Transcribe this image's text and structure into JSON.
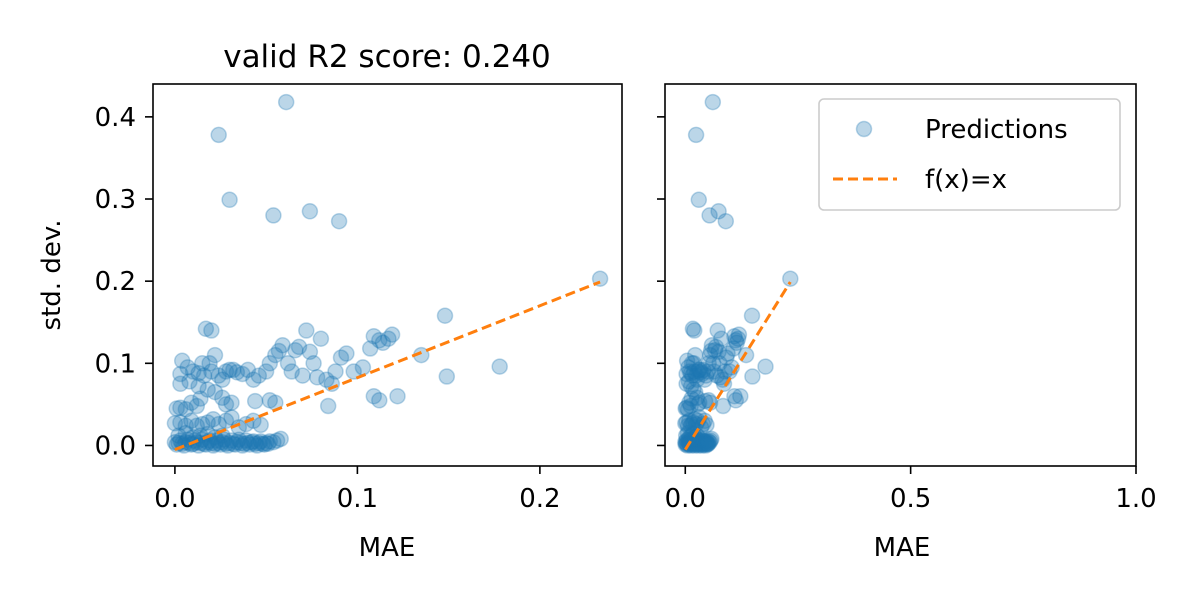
{
  "chart_data": [
    {
      "type": "scatter",
      "title": "valid R2 score: 0.240",
      "xlabel": "MAE",
      "ylabel": "std. dev.",
      "xlim": [
        -0.012,
        0.245
      ],
      "ylim": [
        -0.025,
        0.44
      ],
      "xticks": [
        0.0,
        0.1,
        0.2
      ],
      "xtick_labels": [
        "0.0",
        "0.1",
        "0.2"
      ],
      "yticks": [
        0.0,
        0.1,
        0.2,
        0.3,
        0.4
      ],
      "ytick_labels": [
        "0.0",
        "0.1",
        "0.2",
        "0.3",
        "0.4"
      ],
      "grid": false,
      "series": [
        {
          "kind": "scatter",
          "color": "#1f77b4",
          "opacity": 0.3,
          "points": [
            [
              0.061,
              0.418
            ],
            [
              0.024,
              0.378
            ],
            [
              0.03,
              0.299
            ],
            [
              0.054,
              0.28
            ],
            [
              0.074,
              0.285
            ],
            [
              0.09,
              0.273
            ],
            [
              0.233,
              0.203
            ],
            [
              0.148,
              0.158
            ],
            [
              0.178,
              0.096
            ],
            [
              0.149,
              0.084
            ],
            [
              0.122,
              0.06
            ],
            [
              0.112,
              0.055
            ],
            [
              0.109,
              0.06
            ],
            [
              0.084,
              0.048
            ],
            [
              0.017,
              0.142
            ],
            [
              0.02,
              0.14
            ],
            [
              0.022,
              0.11
            ],
            [
              0.019,
              0.1
            ],
            [
              0.015,
              0.1
            ],
            [
              0.004,
              0.103
            ],
            [
              0.007,
              0.095
            ],
            [
              0.003,
              0.087
            ],
            [
              0.01,
              0.09
            ],
            [
              0.013,
              0.088
            ],
            [
              0.016,
              0.085
            ],
            [
              0.02,
              0.09
            ],
            [
              0.024,
              0.085
            ],
            [
              0.026,
              0.08
            ],
            [
              0.028,
              0.09
            ],
            [
              0.03,
              0.092
            ],
            [
              0.032,
              0.092
            ],
            [
              0.034,
              0.089
            ],
            [
              0.037,
              0.087
            ],
            [
              0.04,
              0.092
            ],
            [
              0.043,
              0.08
            ],
            [
              0.046,
              0.085
            ],
            [
              0.05,
              0.09
            ],
            [
              0.052,
              0.1
            ],
            [
              0.055,
              0.11
            ],
            [
              0.057,
              0.115
            ],
            [
              0.059,
              0.122
            ],
            [
              0.062,
              0.1
            ],
            [
              0.064,
              0.09
            ],
            [
              0.066,
              0.116
            ],
            [
              0.068,
              0.12
            ],
            [
              0.07,
              0.085
            ],
            [
              0.072,
              0.14
            ],
            [
              0.074,
              0.114
            ],
            [
              0.076,
              0.1
            ],
            [
              0.078,
              0.083
            ],
            [
              0.08,
              0.13
            ],
            [
              0.083,
              0.08
            ],
            [
              0.086,
              0.075
            ],
            [
              0.088,
              0.09
            ],
            [
              0.091,
              0.107
            ],
            [
              0.094,
              0.112
            ],
            [
              0.098,
              0.09
            ],
            [
              0.103,
              0.095
            ],
            [
              0.107,
              0.118
            ],
            [
              0.109,
              0.133
            ],
            [
              0.112,
              0.128
            ],
            [
              0.114,
              0.125
            ],
            [
              0.117,
              0.13
            ],
            [
              0.119,
              0.135
            ],
            [
              0.135,
              0.11
            ],
            [
              0.044,
              0.054
            ],
            [
              0.052,
              0.055
            ],
            [
              0.055,
              0.052
            ],
            [
              0.028,
              0.05
            ],
            [
              0.031,
              0.052
            ],
            [
              0.026,
              0.058
            ],
            [
              0.022,
              0.065
            ],
            [
              0.014,
              0.057
            ],
            [
              0.012,
              0.048
            ],
            [
              0.009,
              0.052
            ],
            [
              0.006,
              0.044
            ],
            [
              0.003,
              0.046
            ],
            [
              0.001,
              0.045
            ],
            [
              0.0,
              0.027
            ],
            [
              0.003,
              0.028
            ],
            [
              0.006,
              0.024
            ],
            [
              0.009,
              0.03
            ],
            [
              0.012,
              0.024
            ],
            [
              0.015,
              0.026
            ],
            [
              0.018,
              0.028
            ],
            [
              0.021,
              0.032
            ],
            [
              0.024,
              0.026
            ],
            [
              0.028,
              0.03
            ],
            [
              0.031,
              0.034
            ],
            [
              0.035,
              0.022
            ],
            [
              0.039,
              0.026
            ],
            [
              0.043,
              0.03
            ],
            [
              0.047,
              0.025
            ],
            [
              0.002,
              0.012
            ],
            [
              0.006,
              0.015
            ],
            [
              0.01,
              0.01
            ],
            [
              0.014,
              0.012
            ],
            [
              0.018,
              0.014
            ],
            [
              0.022,
              0.01
            ],
            [
              0.026,
              0.012
            ],
            [
              0.003,
              0.075
            ],
            [
              0.008,
              0.078
            ],
            [
              0.013,
              0.072
            ],
            [
              0.018,
              0.068
            ],
            [
              0.0,
              0.004
            ],
            [
              0.002,
              0.003
            ],
            [
              0.004,
              0.002
            ],
            [
              0.006,
              0.004
            ],
            [
              0.008,
              0.003
            ],
            [
              0.01,
              0.002
            ],
            [
              0.012,
              0.004
            ],
            [
              0.014,
              0.003
            ],
            [
              0.016,
              0.002
            ],
            [
              0.018,
              0.004
            ],
            [
              0.02,
              0.003
            ],
            [
              0.022,
              0.002
            ],
            [
              0.024,
              0.003
            ],
            [
              0.026,
              0.004
            ],
            [
              0.028,
              0.002
            ],
            [
              0.03,
              0.003
            ],
            [
              0.032,
              0.002
            ],
            [
              0.034,
              0.004
            ],
            [
              0.036,
              0.003
            ],
            [
              0.038,
              0.002
            ],
            [
              0.04,
              0.003
            ],
            [
              0.042,
              0.004
            ],
            [
              0.044,
              0.002
            ],
            [
              0.046,
              0.003
            ],
            [
              0.048,
              0.002
            ],
            [
              0.05,
              0.003
            ],
            [
              0.052,
              0.005
            ],
            [
              0.054,
              0.004
            ],
            [
              0.056,
              0.006
            ],
            [
              0.058,
              0.008
            ],
            [
              0.001,
              0.001
            ],
            [
              0.003,
              0.006
            ],
            [
              0.005,
              0.0
            ],
            [
              0.007,
              0.007
            ],
            [
              0.009,
              0.001
            ],
            [
              0.011,
              0.006
            ],
            [
              0.013,
              0.0
            ],
            [
              0.015,
              0.007
            ],
            [
              0.017,
              0.001
            ],
            [
              0.019,
              0.006
            ],
            [
              0.021,
              0.0
            ],
            [
              0.023,
              0.006
            ],
            [
              0.025,
              0.001
            ],
            [
              0.027,
              0.007
            ],
            [
              0.029,
              0.0
            ],
            [
              0.031,
              0.006
            ],
            [
              0.033,
              0.001
            ],
            [
              0.035,
              0.007
            ],
            [
              0.037,
              0.0
            ],
            [
              0.039,
              0.006
            ],
            [
              0.041,
              0.001
            ],
            [
              0.043,
              0.005
            ],
            [
              0.045,
              0.0
            ],
            [
              0.047,
              0.005
            ],
            [
              0.049,
              0.001
            ],
            [
              0.051,
              0.002
            ]
          ]
        },
        {
          "kind": "line",
          "color": "#ff7f0e",
          "dashed": true,
          "points": [
            [
              0.0,
              -0.005
            ],
            [
              0.233,
              0.199
            ]
          ]
        }
      ]
    },
    {
      "type": "scatter",
      "title": "",
      "xlabel": "MAE",
      "ylabel": "",
      "xlim": [
        -0.045,
        1.0
      ],
      "ylim": [
        -0.025,
        0.44
      ],
      "xticks": [
        0.0,
        0.5,
        1.0
      ],
      "xtick_labels": [
        "0.0",
        "0.5",
        "1.0"
      ],
      "yticks": [
        0.0,
        0.1,
        0.2,
        0.3,
        0.4
      ],
      "ytick_labels": [
        "",
        "",
        "",
        "",
        ""
      ],
      "grid": false,
      "legend": {
        "placement": "top-right",
        "entries": [
          {
            "label": "Predictions",
            "kind": "marker"
          },
          {
            "label": "f(x)=x",
            "kind": "dashed-line"
          }
        ]
      },
      "shared_series_from": 0
    }
  ]
}
